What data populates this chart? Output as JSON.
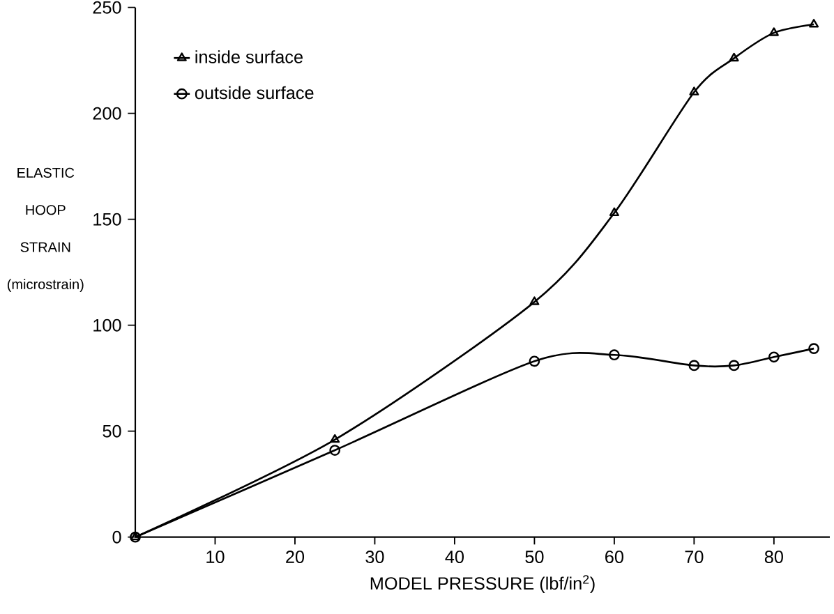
{
  "chart_data": {
    "type": "line",
    "xlabel": "MODEL PRESSURE (lbf/in$^{2}$)",
    "ylabel": "ELASTIC HOOP STRAIN (microstrain)",
    "x": [
      0,
      25,
      50,
      60,
      70,
      75,
      80,
      85
    ],
    "series": [
      {
        "name": "inside surface",
        "color": "#000000",
        "marker": "triangle",
        "values": [
          0,
          46,
          111,
          153,
          210,
          226,
          238,
          242
        ]
      },
      {
        "name": "outside surface",
        "color": "#000000",
        "marker": "circle",
        "values": [
          0,
          41,
          83,
          86,
          81,
          81,
          85,
          89
        ]
      }
    ],
    "xlim": [
      0,
      87
    ],
    "ylim": [
      0,
      250
    ],
    "xticks": [
      10,
      20,
      30,
      40,
      50,
      60,
      70,
      80
    ],
    "yticks": [
      0,
      50,
      100,
      150,
      200,
      250
    ],
    "grid": false,
    "legend": "top left",
    "line_style": "solid"
  }
}
